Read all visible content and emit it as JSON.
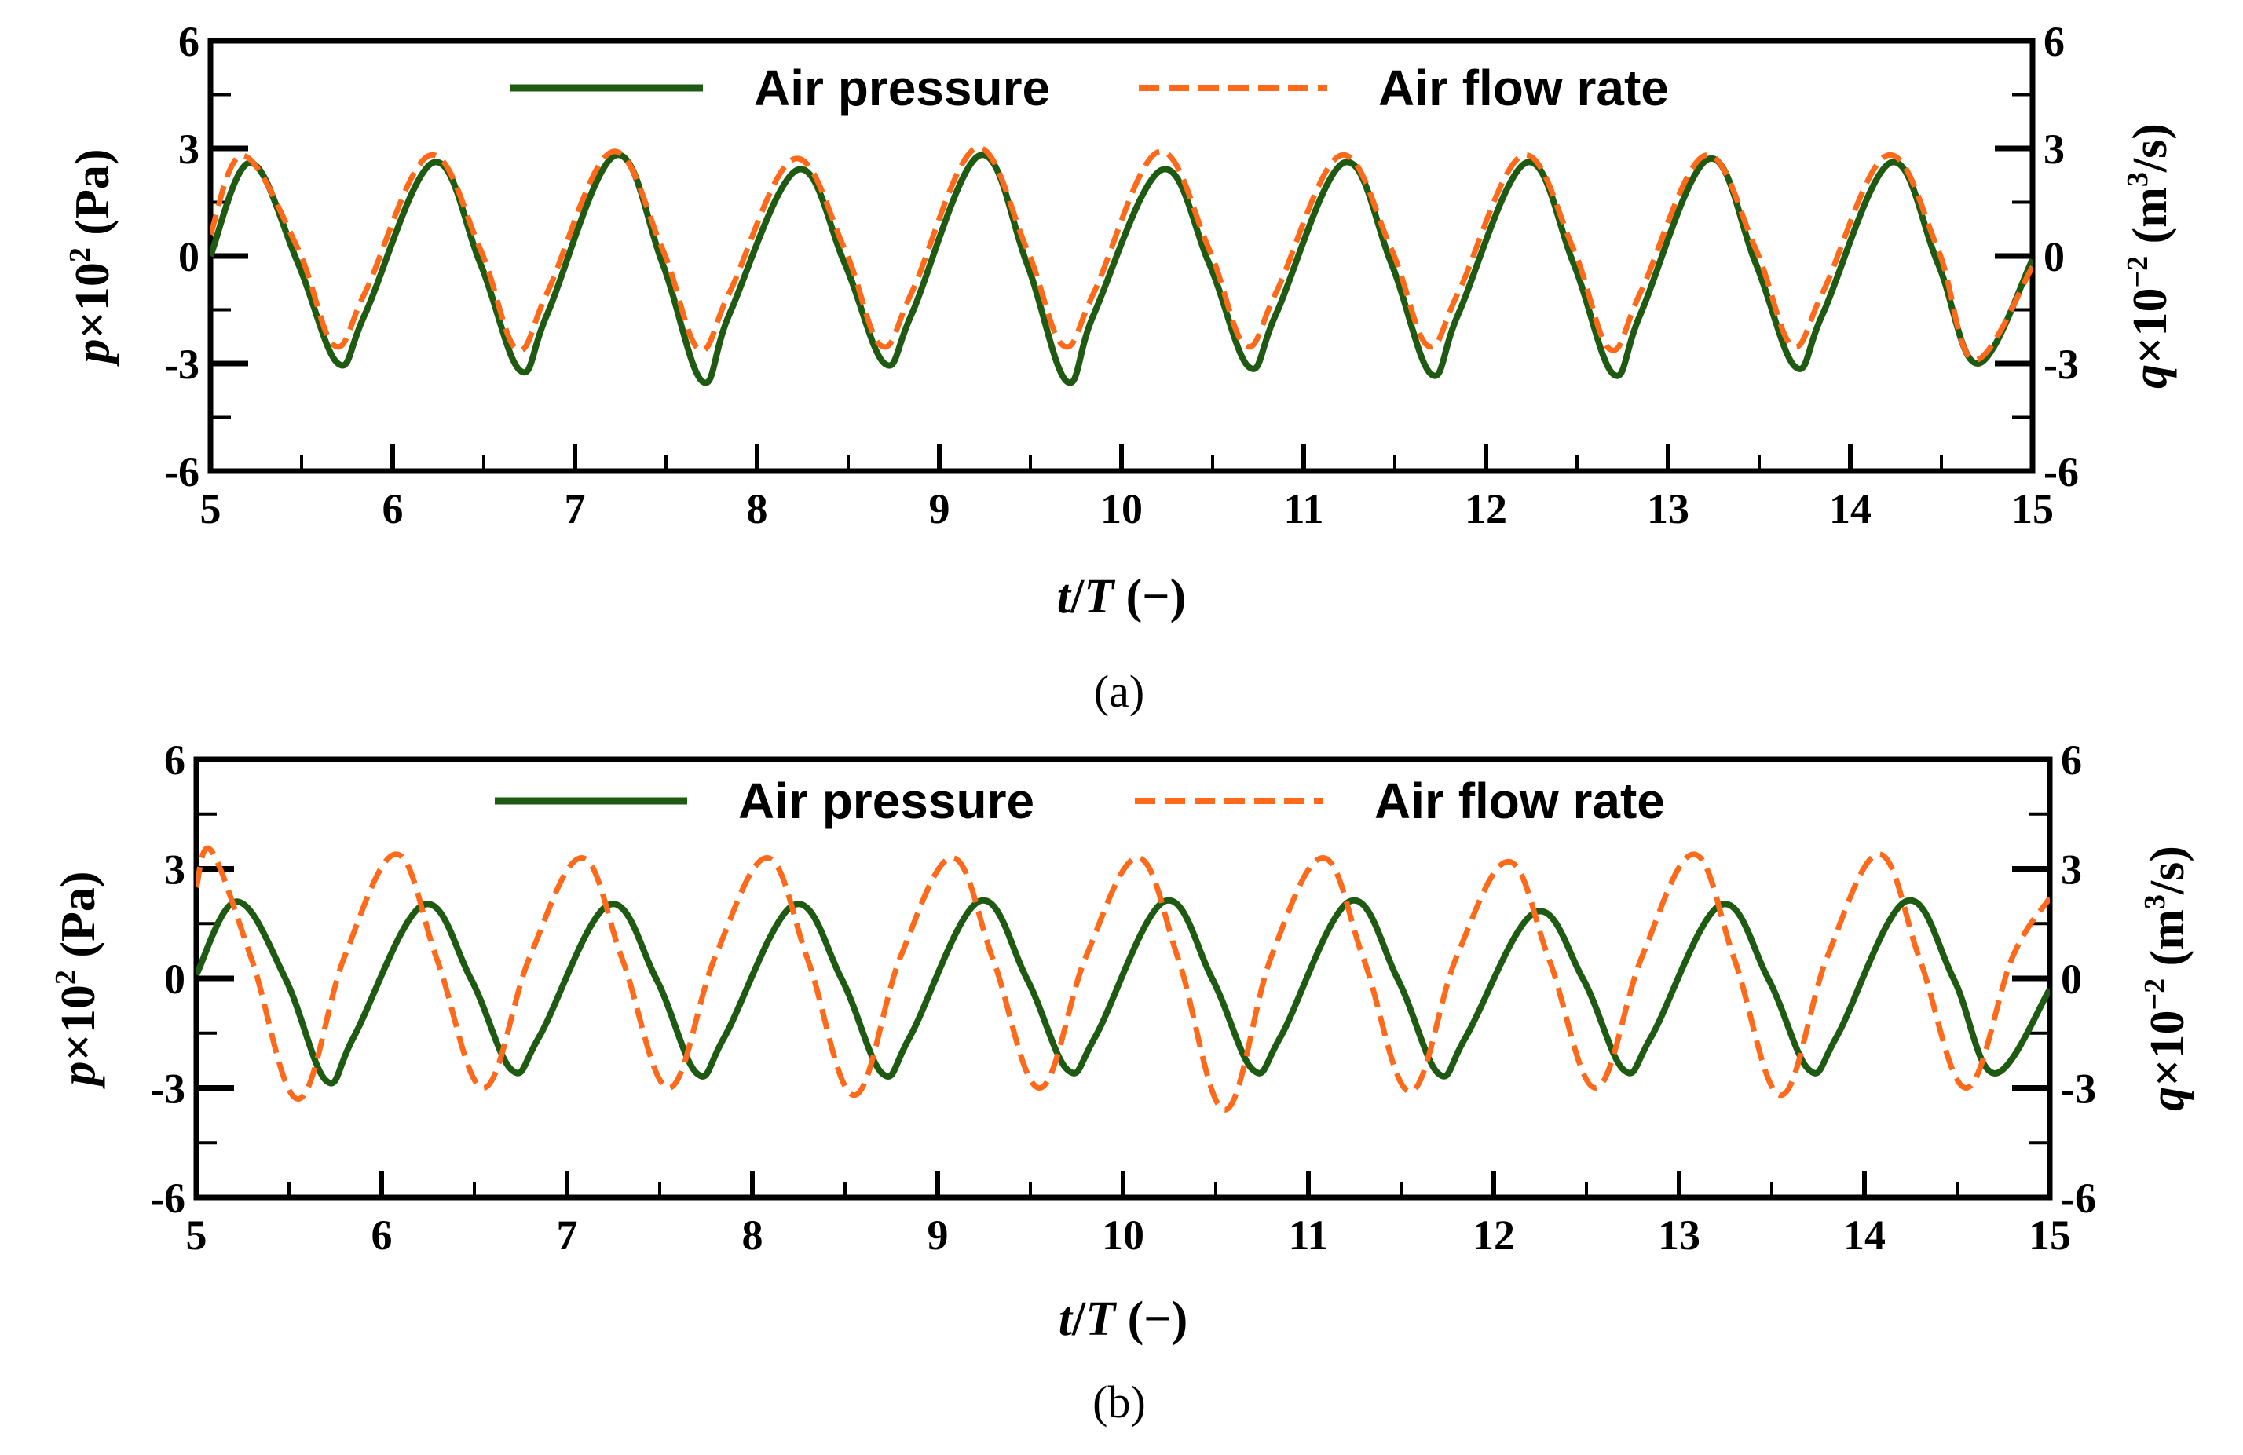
{
  "chart_data": [
    {
      "panel": "a",
      "type": "line",
      "caption": "(a)",
      "x_range": [
        5,
        15
      ],
      "xticks": [
        "5",
        "6",
        "7",
        "8",
        "9",
        "10",
        "11",
        "12",
        "13",
        "14",
        "15"
      ],
      "xlabel": {
        "var": "t",
        "slash": "/",
        "var2": "T",
        "rest": " (−)"
      },
      "ylabel_left": {
        "var": "p",
        "times": "×10",
        "exp": "2",
        "rest": " (Pa)"
      },
      "ylabel_right": {
        "var": "q",
        "times": "×10",
        "exp": "−2",
        "rest": " (m",
        "exp2": "3",
        "rest2": "/s)"
      },
      "ylim_left": [
        -6,
        6
      ],
      "ylim_right": [
        -6,
        6
      ],
      "yticks_left": [
        "6",
        "3",
        "0",
        "-3",
        "-6"
      ],
      "yticks_right": [
        "6",
        "3",
        "0",
        "-3",
        "-6"
      ],
      "colors": {
        "pressure": "#1f5a12",
        "flow": "#ff6a1a"
      },
      "series": [
        {
          "name": "Air pressure",
          "axis": "left",
          "style": "solid",
          "x": [
            5.0,
            5.22,
            5.48,
            5.7,
            5.85,
            6.22,
            6.48,
            6.7,
            6.85,
            7.22,
            7.48,
            7.7,
            7.85,
            8.22,
            8.48,
            8.7,
            8.85,
            9.22,
            9.48,
            9.7,
            9.85,
            10.22,
            10.48,
            10.7,
            10.85,
            11.22,
            11.48,
            11.7,
            11.85,
            12.22,
            12.48,
            12.7,
            12.85,
            13.22,
            13.48,
            13.7,
            13.85,
            14.22,
            14.48,
            14.7,
            15.0
          ],
          "y": [
            0.0,
            2.6,
            -0.2,
            -3.0,
            -1.6,
            2.6,
            -0.2,
            -3.2,
            -1.6,
            2.8,
            -0.2,
            -3.5,
            -1.6,
            2.4,
            -0.2,
            -3.0,
            -1.6,
            2.8,
            -0.2,
            -3.5,
            -1.6,
            2.4,
            -0.2,
            -3.1,
            -1.6,
            2.6,
            -0.2,
            -3.3,
            -1.6,
            2.6,
            -0.2,
            -3.3,
            -1.6,
            2.7,
            -0.2,
            -3.1,
            -1.6,
            2.6,
            -0.2,
            -3.0,
            -0.1
          ]
        },
        {
          "name": "Air flow rate",
          "axis": "right",
          "style": "dashed",
          "x": [
            5.0,
            5.18,
            5.48,
            5.68,
            5.85,
            6.2,
            6.48,
            6.68,
            6.85,
            7.2,
            7.48,
            7.68,
            7.85,
            8.2,
            8.48,
            8.68,
            8.85,
            9.2,
            9.48,
            9.68,
            9.85,
            10.2,
            10.48,
            10.68,
            10.85,
            11.2,
            11.48,
            11.68,
            11.85,
            12.2,
            12.48,
            12.68,
            12.85,
            13.2,
            13.48,
            13.68,
            13.85,
            14.2,
            14.48,
            14.68,
            15.0
          ],
          "y": [
            0.6,
            2.8,
            0.2,
            -2.5,
            -1.0,
            2.8,
            0.2,
            -2.6,
            -1.0,
            2.9,
            0.2,
            -2.6,
            -1.0,
            2.7,
            0.2,
            -2.5,
            -1.0,
            3.0,
            0.2,
            -2.5,
            -1.0,
            2.9,
            0.2,
            -2.5,
            -1.0,
            2.8,
            0.2,
            -2.5,
            -1.0,
            2.8,
            0.2,
            -2.6,
            -1.0,
            2.8,
            0.2,
            -2.5,
            -1.0,
            2.8,
            0.2,
            -2.9,
            -0.3
          ]
        }
      ]
    },
    {
      "panel": "b",
      "type": "line",
      "caption": "(b)",
      "x_range": [
        5,
        15
      ],
      "xticks": [
        "5",
        "6",
        "7",
        "8",
        "9",
        "10",
        "11",
        "12",
        "13",
        "14",
        "15"
      ],
      "xlabel": {
        "var": "t",
        "slash": "/",
        "var2": "T",
        "rest": " (−)"
      },
      "ylabel_left": {
        "var": "p",
        "times": "×10",
        "exp": "2",
        "rest": " (Pa)"
      },
      "ylabel_right": {
        "var": "q",
        "times": "×10",
        "exp": "−2",
        "rest": " (m",
        "exp2": "3",
        "rest2": "/s)"
      },
      "ylim_left": [
        -6,
        6
      ],
      "ylim_right": [
        -6,
        6
      ],
      "yticks_left": [
        "6",
        "3",
        "0",
        "-3",
        "-6"
      ],
      "yticks_right": [
        "6",
        "3",
        "0",
        "-3",
        "-6"
      ],
      "colors": {
        "pressure": "#1f5a12",
        "flow": "#ff6a1a"
      },
      "series": [
        {
          "name": "Air pressure",
          "axis": "left",
          "style": "solid",
          "x": [
            5.0,
            5.22,
            5.48,
            5.7,
            5.85,
            6.22,
            6.48,
            6.7,
            6.85,
            7.22,
            7.48,
            7.7,
            7.85,
            8.22,
            8.48,
            8.7,
            8.85,
            9.22,
            9.48,
            9.7,
            9.85,
            10.22,
            10.48,
            10.7,
            10.85,
            11.22,
            11.48,
            11.7,
            11.85,
            12.22,
            12.48,
            12.7,
            12.85,
            13.22,
            13.48,
            13.7,
            13.85,
            14.22,
            14.48,
            14.7,
            15.0
          ],
          "y": [
            0.1,
            2.1,
            0.0,
            -2.8,
            -1.6,
            2.0,
            0.0,
            -2.5,
            -1.6,
            2.0,
            0.0,
            -2.6,
            -1.6,
            2.0,
            0.0,
            -2.6,
            -1.6,
            2.1,
            0.0,
            -2.5,
            -1.6,
            2.1,
            0.0,
            -2.5,
            -1.6,
            2.1,
            0.0,
            -2.6,
            -1.6,
            1.8,
            0.0,
            -2.5,
            -1.6,
            2.0,
            0.0,
            -2.5,
            -1.6,
            2.1,
            0.0,
            -2.6,
            -0.3
          ]
        },
        {
          "name": "Air flow rate",
          "axis": "right",
          "style": "dashed",
          "x": [
            5.0,
            5.08,
            5.3,
            5.55,
            5.8,
            6.08,
            6.3,
            6.55,
            6.8,
            7.08,
            7.3,
            7.55,
            7.8,
            8.08,
            8.3,
            8.55,
            8.8,
            9.08,
            9.3,
            9.55,
            9.8,
            10.08,
            10.3,
            10.55,
            10.8,
            11.08,
            11.3,
            11.55,
            11.8,
            12.08,
            12.3,
            12.55,
            12.8,
            13.08,
            13.3,
            13.55,
            13.8,
            14.08,
            14.3,
            14.55,
            14.8,
            15.0
          ],
          "y": [
            2.5,
            3.5,
            0.5,
            -3.3,
            0.6,
            3.4,
            0.5,
            -3.0,
            0.6,
            3.3,
            0.5,
            -3.0,
            0.6,
            3.3,
            0.5,
            -3.2,
            0.6,
            3.3,
            0.5,
            -3.0,
            0.6,
            3.3,
            0.5,
            -3.6,
            0.6,
            3.3,
            0.5,
            -3.1,
            0.6,
            3.2,
            0.5,
            -3.0,
            0.6,
            3.4,
            0.5,
            -3.2,
            0.6,
            3.4,
            0.5,
            -3.0,
            0.6,
            2.2
          ]
        }
      ]
    }
  ]
}
